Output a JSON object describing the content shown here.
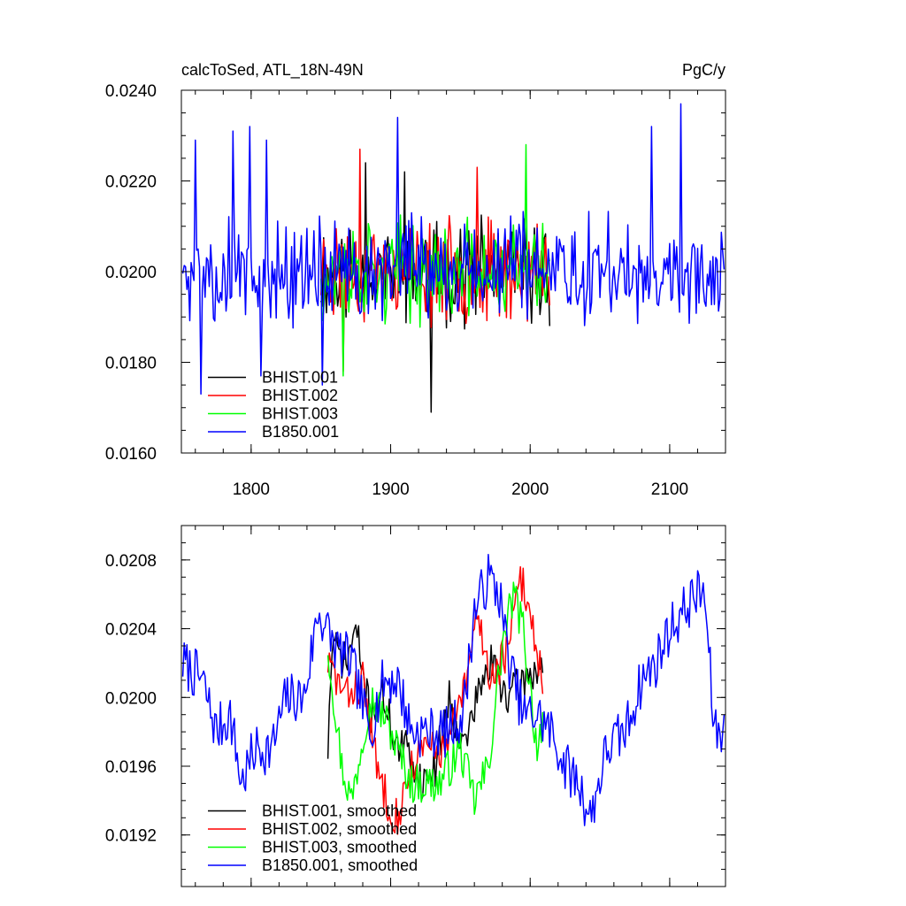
{
  "colors": {
    "BHIST.001": "#000000",
    "BHIST.002": "#ff0000",
    "BHIST.003": "#00ff00",
    "B1850.001": "#0000ff",
    "axis": "#000000"
  },
  "chart_data": [
    {
      "type": "line",
      "title_left": "calcToSed, ATL_18N-49N",
      "title_right": "PgC/y",
      "xlim": [
        1750,
        2140
      ],
      "ylim": [
        0.016,
        0.024
      ],
      "y_ticks": [
        0.016,
        0.018,
        0.02,
        0.022,
        0.024
      ],
      "y_tick_labels": [
        "0.0160",
        "0.0180",
        "0.0200",
        "0.0220",
        "0.0240"
      ],
      "x_ticks": [
        1800,
        1900,
        2000,
        2100
      ],
      "x_tick_labels": [
        "1800",
        "1900",
        "2000",
        "2100"
      ],
      "grid": false,
      "legend_position": "bottom-left",
      "series": [
        {
          "name": "BHIST.001",
          "x_start": 1850,
          "x_end": 2014,
          "center": 0.02,
          "amp": 0.00095,
          "seed": 11,
          "spikes": [
            [
              1929,
              0.0169
            ],
            [
              1882,
              0.0224
            ],
            [
              1910,
              0.0222
            ]
          ]
        },
        {
          "name": "BHIST.002",
          "x_start": 1850,
          "x_end": 2014,
          "center": 0.02,
          "amp": 0.00095,
          "seed": 23,
          "spikes": [
            [
              1878,
              0.0227
            ],
            [
              1866,
              0.0178
            ],
            [
              1962,
              0.0223
            ]
          ]
        },
        {
          "name": "BHIST.003",
          "x_start": 1850,
          "x_end": 2014,
          "center": 0.02,
          "amp": 0.00095,
          "seed": 37,
          "spikes": [
            [
              1997,
              0.0228
            ],
            [
              1849,
              0.0222
            ],
            [
              1866,
              0.0177
            ]
          ]
        },
        {
          "name": "B1850.001",
          "x_start": 1751,
          "x_end": 2139,
          "center": 0.02,
          "amp": 0.001,
          "seed": 5,
          "spikes": [
            [
              2108,
              0.0237
            ],
            [
              1905,
              0.0234
            ],
            [
              1760,
              0.0229
            ],
            [
              1851,
              0.0175
            ],
            [
              1764,
              0.0173
            ],
            [
              1807,
              0.0177
            ],
            [
              1799,
              0.0232
            ],
            [
              1787,
              0.0231
            ],
            [
              2087,
              0.0232
            ],
            [
              1811,
              0.0229
            ]
          ]
        }
      ]
    },
    {
      "type": "line",
      "xlim": [
        1750,
        2140
      ],
      "ylim": [
        0.0189,
        0.021
      ],
      "y_ticks": [
        0.0192,
        0.0196,
        0.02,
        0.0204,
        0.0208
      ],
      "y_tick_labels": [
        "0.0192",
        "0.0196",
        "0.0200",
        "0.0204",
        "0.0208"
      ],
      "x_ticks": [
        1800,
        1900,
        2000,
        2100
      ],
      "x_tick_labels": [],
      "grid": false,
      "legend_position": "bottom-left",
      "series": [
        {
          "name": "BHIST.001, smoothed",
          "x_start": 1855,
          "x_end": 2009,
          "jitter": 0.00012,
          "seed": 71,
          "knots": [
            [
              1855,
              0.0197
            ],
            [
              1858,
              0.0203
            ],
            [
              1868,
              0.0202
            ],
            [
              1875,
              0.0204
            ],
            [
              1885,
              0.0199
            ],
            [
              1895,
              0.02
            ],
            [
              1905,
              0.0197
            ],
            [
              1912,
              0.0197
            ],
            [
              1922,
              0.0195
            ],
            [
              1932,
              0.0196
            ],
            [
              1942,
              0.02
            ],
            [
              1952,
              0.0197
            ],
            [
              1962,
              0.02
            ],
            [
              1972,
              0.0202
            ],
            [
              1985,
              0.02
            ],
            [
              1995,
              0.0201
            ],
            [
              2009,
              0.0202
            ]
          ]
        },
        {
          "name": "BHIST.002, smoothed",
          "x_start": 1855,
          "x_end": 2009,
          "jitter": 0.00012,
          "seed": 83,
          "knots": [
            [
              1855,
              0.0202
            ],
            [
              1868,
              0.02
            ],
            [
              1880,
              0.0201
            ],
            [
              1890,
              0.0196
            ],
            [
              1898,
              0.0194
            ],
            [
              1905,
              0.0193
            ],
            [
              1915,
              0.0196
            ],
            [
              1925,
              0.0197
            ],
            [
              1940,
              0.0197
            ],
            [
              1955,
              0.0201
            ],
            [
              1962,
              0.0205
            ],
            [
              1972,
              0.0201
            ],
            [
              1985,
              0.0203
            ],
            [
              1993,
              0.0207
            ],
            [
              2000,
              0.0205
            ],
            [
              2009,
              0.0201
            ]
          ]
        },
        {
          "name": "BHIST.003, smoothed",
          "x_start": 1855,
          "x_end": 2009,
          "jitter": 0.00012,
          "seed": 97,
          "knots": [
            [
              1855,
              0.0203
            ],
            [
              1865,
              0.0196
            ],
            [
              1872,
              0.0194
            ],
            [
              1885,
              0.02
            ],
            [
              1895,
              0.0199
            ],
            [
              1905,
              0.0197
            ],
            [
              1915,
              0.0195
            ],
            [
              1935,
              0.0195
            ],
            [
              1950,
              0.0197
            ],
            [
              1960,
              0.0194
            ],
            [
              1970,
              0.0196
            ],
            [
              1980,
              0.0203
            ],
            [
              1988,
              0.0206
            ],
            [
              1995,
              0.0204
            ],
            [
              2005,
              0.0197
            ],
            [
              2009,
              0.0199
            ]
          ]
        },
        {
          "name": "B1850.001, smoothed",
          "x_start": 1751,
          "x_end": 2139,
          "jitter": 0.00015,
          "seed": 7,
          "knots": [
            [
              1751,
              0.0202
            ],
            [
              1765,
              0.0201
            ],
            [
              1775,
              0.0198
            ],
            [
              1785,
              0.0199
            ],
            [
              1793,
              0.0195
            ],
            [
              1803,
              0.0197
            ],
            [
              1815,
              0.0197
            ],
            [
              1825,
              0.02
            ],
            [
              1838,
              0.02
            ],
            [
              1848,
              0.0205
            ],
            [
              1860,
              0.0203
            ],
            [
              1872,
              0.0202
            ],
            [
              1885,
              0.0198
            ],
            [
              1895,
              0.0201
            ],
            [
              1905,
              0.0201
            ],
            [
              1915,
              0.0198
            ],
            [
              1928,
              0.0198
            ],
            [
              1940,
              0.0198
            ],
            [
              1952,
              0.0199
            ],
            [
              1960,
              0.0205
            ],
            [
              1970,
              0.0207
            ],
            [
              1978,
              0.0206
            ],
            [
              1985,
              0.0202
            ],
            [
              1995,
              0.0199
            ],
            [
              2005,
              0.0199
            ],
            [
              2015,
              0.0198
            ],
            [
              2025,
              0.0196
            ],
            [
              2035,
              0.0195
            ],
            [
              2043,
              0.0193
            ],
            [
              2055,
              0.0197
            ],
            [
              2068,
              0.0198
            ],
            [
              2080,
              0.0201
            ],
            [
              2090,
              0.0202
            ],
            [
              2100,
              0.0204
            ],
            [
              2110,
              0.0205
            ],
            [
              2118,
              0.0206
            ],
            [
              2125,
              0.0206
            ],
            [
              2132,
              0.0198
            ],
            [
              2139,
              0.0198
            ]
          ]
        }
      ]
    }
  ]
}
